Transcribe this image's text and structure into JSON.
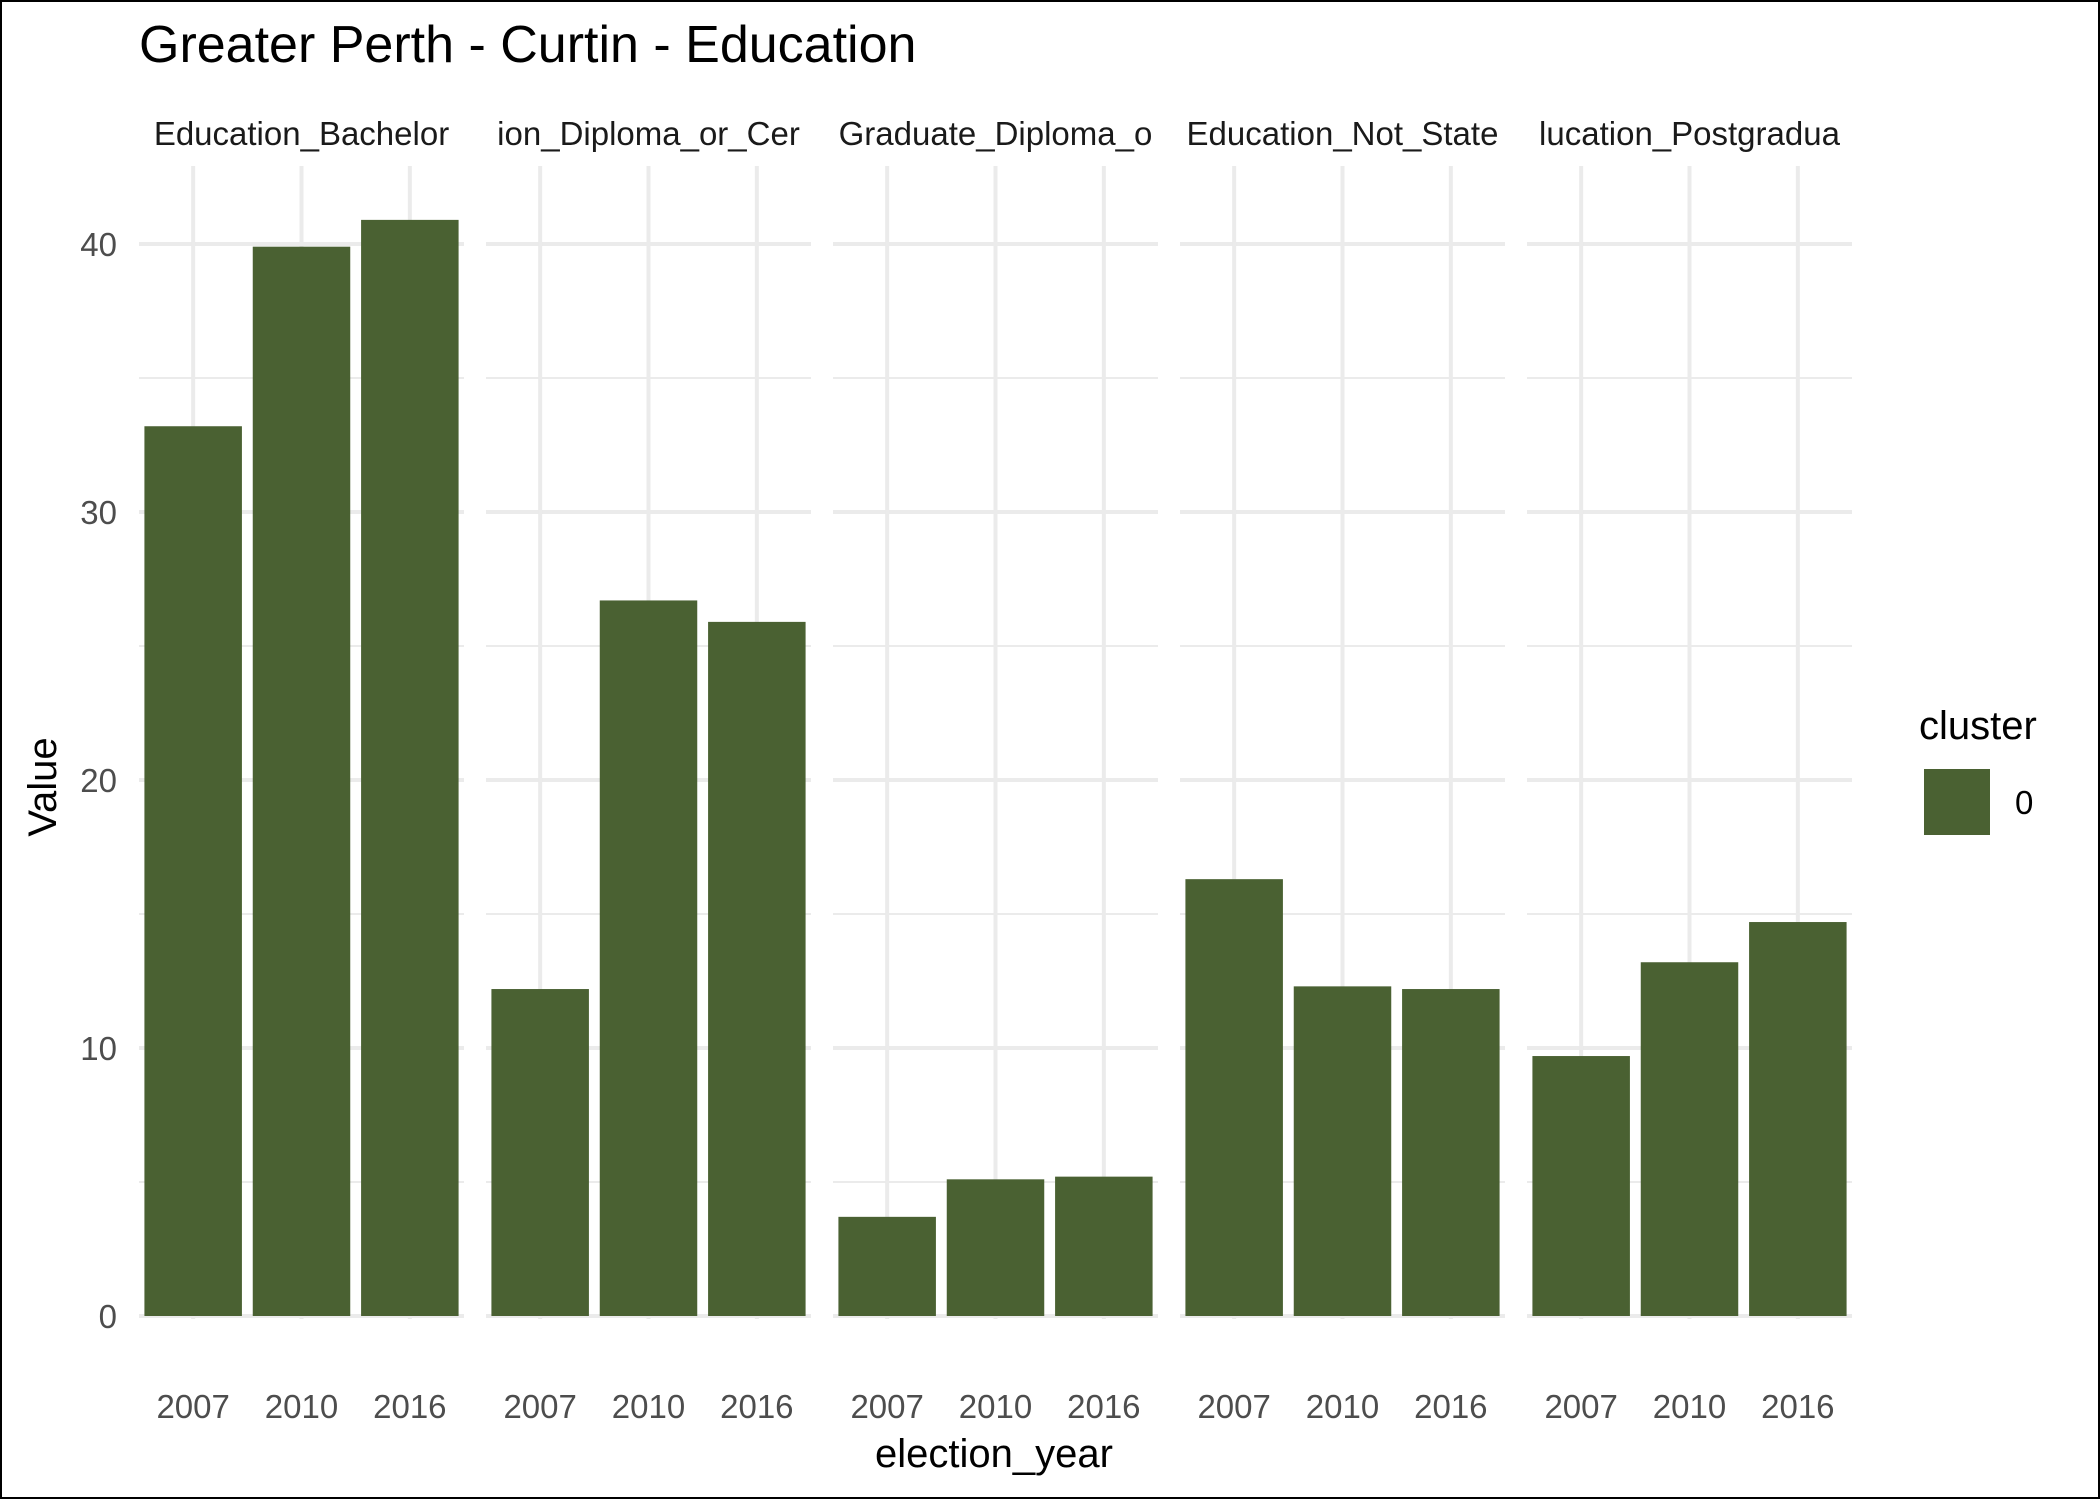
{
  "chart_data": {
    "type": "bar",
    "title": "Greater Perth - Curtin - Education",
    "xlabel": "election_year",
    "ylabel": "Value",
    "categories": [
      "2007",
      "2010",
      "2016"
    ],
    "yticks": [
      "0",
      "10",
      "20",
      "30",
      "40"
    ],
    "ylim": [
      0,
      42
    ],
    "grid": true,
    "legend": {
      "title": "cluster",
      "placement": "right",
      "entries": [
        {
          "label": "0",
          "color": "#4a6132"
        }
      ]
    },
    "facets": [
      {
        "strip": "Education_Bachelor",
        "values": [
          33.2,
          39.9,
          40.9
        ]
      },
      {
        "strip": "ion_Diploma_or_Cer",
        "values": [
          12.2,
          26.7,
          25.9
        ]
      },
      {
        "strip": "Graduate_Diploma_o",
        "values": [
          3.7,
          5.1,
          5.2
        ]
      },
      {
        "strip": "Education_Not_State",
        "values": [
          16.3,
          12.3,
          12.2
        ]
      },
      {
        "strip": "lucation_Postgradua",
        "values": [
          9.7,
          13.2,
          14.7
        ]
      }
    ],
    "colors": {
      "bar": "#4a6132",
      "grid": "#ebebeb"
    }
  }
}
